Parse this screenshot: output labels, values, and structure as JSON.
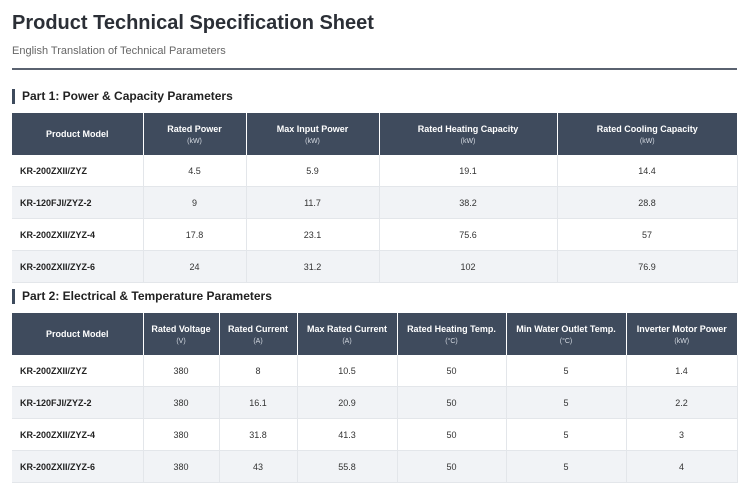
{
  "header": {
    "title": "Product Technical Specification Sheet",
    "subtitle": "English Translation of Technical Parameters"
  },
  "sections": [
    {
      "heading": "Part 1: Power & Capacity Parameters",
      "table": {
        "columns": [
          {
            "name": "Product Model"
          },
          {
            "name": "Rated Power",
            "unit": "(kW)"
          },
          {
            "name": "Max Input Power",
            "unit": "(kW)"
          },
          {
            "name": "Rated Heating Capacity",
            "unit": "(kW)"
          },
          {
            "name": "Rated Cooling Capacity",
            "unit": "(kW)"
          }
        ],
        "rows": [
          [
            "KR-200ZXII/ZYZ",
            4.5,
            5.9,
            19.1,
            14.4
          ],
          [
            "KR-120FJI/ZYZ-2",
            9,
            11.7,
            38.2,
            28.8
          ],
          [
            "KR-200ZXII/ZYZ-4",
            17.8,
            23.1,
            75.6,
            57
          ],
          [
            "KR-200ZXII/ZYZ-6",
            24,
            31.2,
            102,
            76.9
          ]
        ]
      }
    },
    {
      "heading": "Part 2: Electrical & Temperature Parameters",
      "table": {
        "columns": [
          {
            "name": "Product Model"
          },
          {
            "name": "Rated Voltage",
            "unit": "(V)"
          },
          {
            "name": "Rated Current",
            "unit": "(A)"
          },
          {
            "name": "Max Rated Current",
            "unit": "(A)"
          },
          {
            "name": "Rated Heating Temp.",
            "unit": "(°C)"
          },
          {
            "name": "Min Water Outlet Temp.",
            "unit": "(°C)"
          },
          {
            "name": "Inverter Motor Power",
            "unit": "(kW)"
          }
        ],
        "rows": [
          [
            "KR-200ZXII/ZYZ",
            380,
            8,
            10.5,
            50,
            5,
            1.4
          ],
          [
            "KR-120FJI/ZYZ-2",
            380,
            16.1,
            20.9,
            50,
            5,
            2.2
          ],
          [
            "KR-200ZXII/ZYZ-4",
            380,
            31.8,
            41.3,
            50,
            5,
            3
          ],
          [
            "KR-200ZXII/ZYZ-6",
            380,
            43,
            55.8,
            50,
            5,
            4
          ]
        ]
      }
    }
  ]
}
